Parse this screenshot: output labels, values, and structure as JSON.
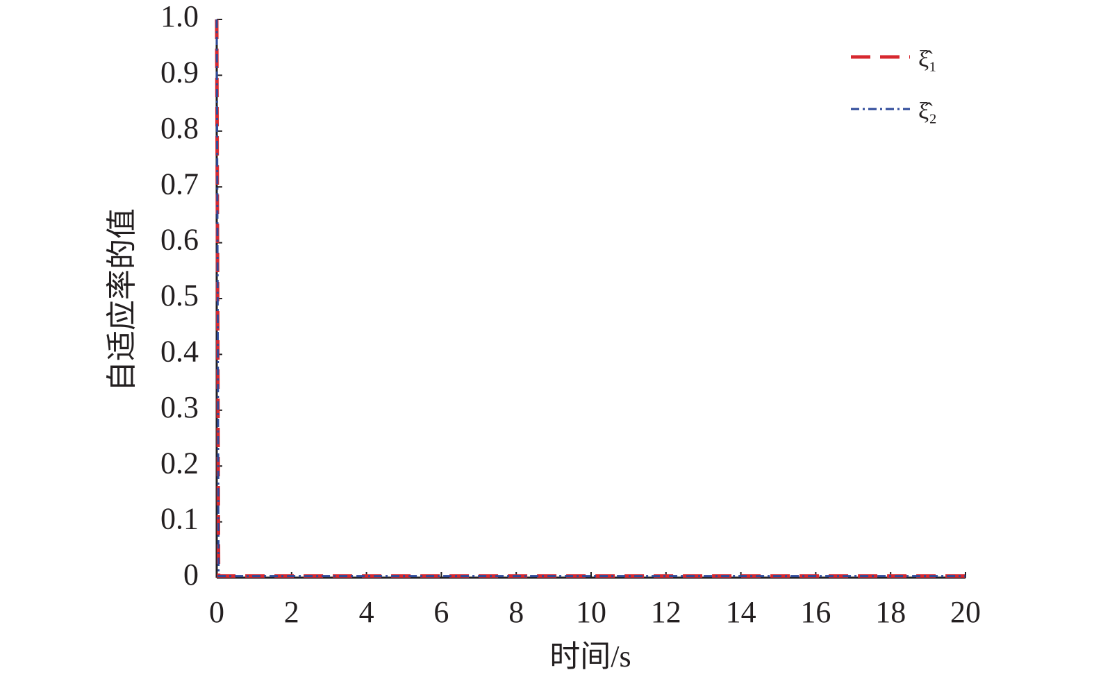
{
  "chart_data": {
    "type": "line",
    "xlabel": "时间/s",
    "ylabel": "自适应率的值",
    "x": [
      0,
      0.05,
      20
    ],
    "series": [
      {
        "name": "ξ̂₁",
        "color": "#d7282f",
        "dash": "28 14",
        "width": 5,
        "values": [
          1,
          0.003,
          0.003
        ]
      },
      {
        "name": "ξ̂₂",
        "color": "#2e4a9a",
        "dash": "12 5 3 5",
        "width": 3,
        "values": [
          1,
          0.003,
          0.003
        ]
      }
    ],
    "xlim": [
      0,
      20
    ],
    "ylim": [
      0,
      1
    ],
    "xticks": [
      0,
      2,
      4,
      6,
      8,
      10,
      12,
      14,
      16,
      18,
      20
    ],
    "yticks": [
      0,
      0.1,
      0.2,
      0.3,
      0.4,
      0.5,
      0.6,
      0.7,
      0.8,
      0.9,
      {
        "value": 1,
        "label": "1.0"
      }
    ],
    "legend": "upper right",
    "grid": false
  }
}
